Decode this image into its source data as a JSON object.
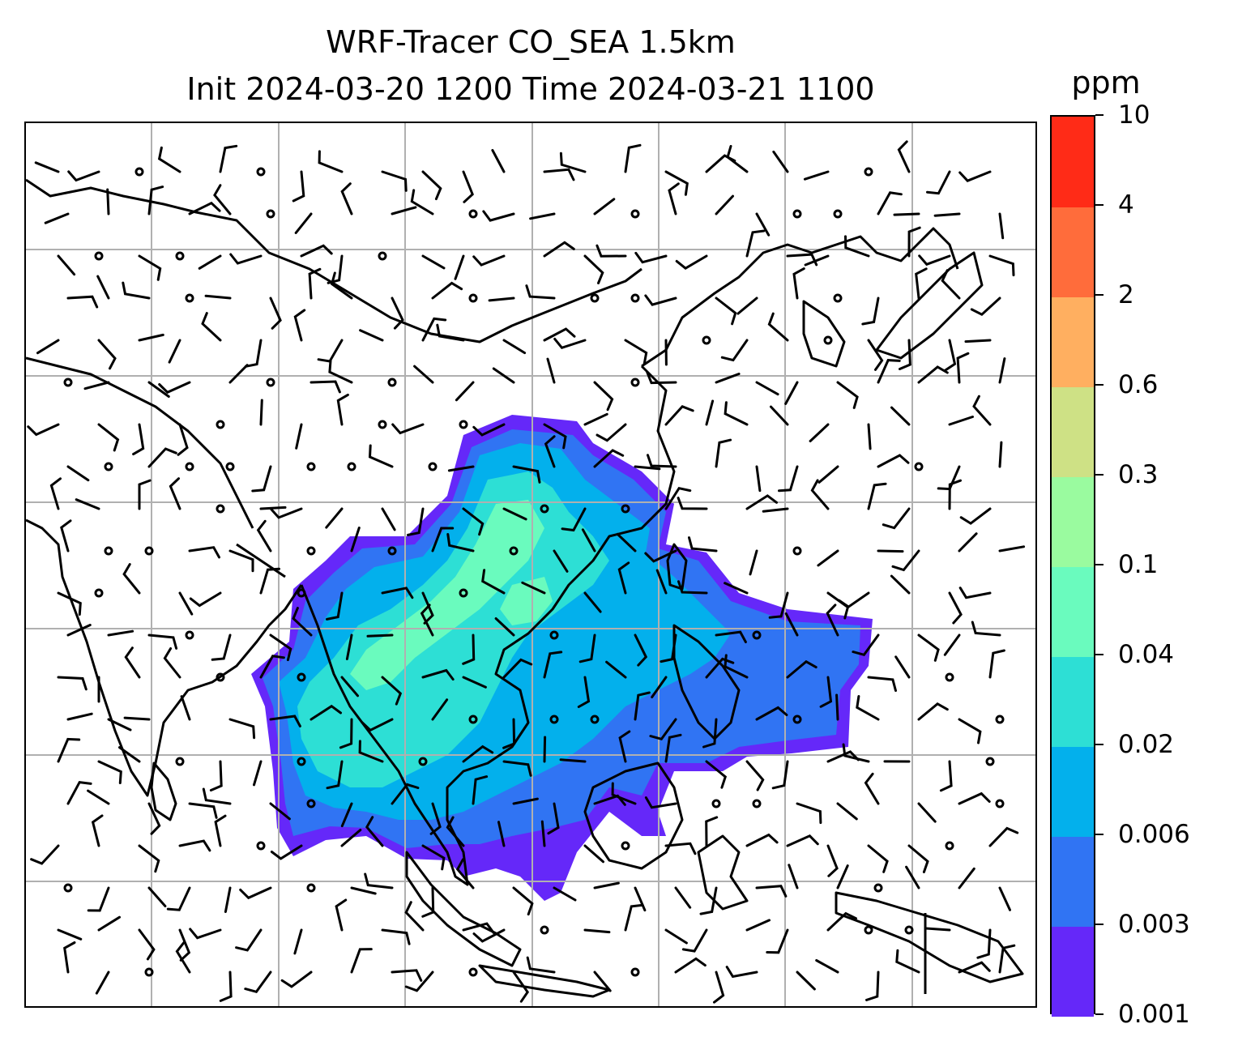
{
  "title": {
    "line1": "WRF-Tracer CO_SEA 1.5km",
    "line2": "Init 2024-03-20 1200 Time 2024-03-21 1100"
  },
  "colorbar": {
    "unit": "ppm",
    "levels": [
      "0.001",
      "0.003",
      "0.006",
      "0.02",
      "0.04",
      "0.1",
      "0.3",
      "0.6",
      "2",
      "4",
      "10"
    ],
    "colors": [
      "#6528f9",
      "#3074f3",
      "#03b0ec",
      "#2ddfd5",
      "#6afbbe",
      "#9afb9f",
      "#cee185",
      "#ffaf60",
      "#ff6c3b",
      "#ff2b17"
    ]
  },
  "map": {
    "field_description_colors": {
      "outer": "#6528f9",
      "mid": "#3074f3",
      "inner": "#03b0ec",
      "core": "#2ddfd5",
      "peak": "#6afbbe"
    },
    "gridline_color": "#b0b0b0",
    "coastline_color": "#000000"
  }
}
